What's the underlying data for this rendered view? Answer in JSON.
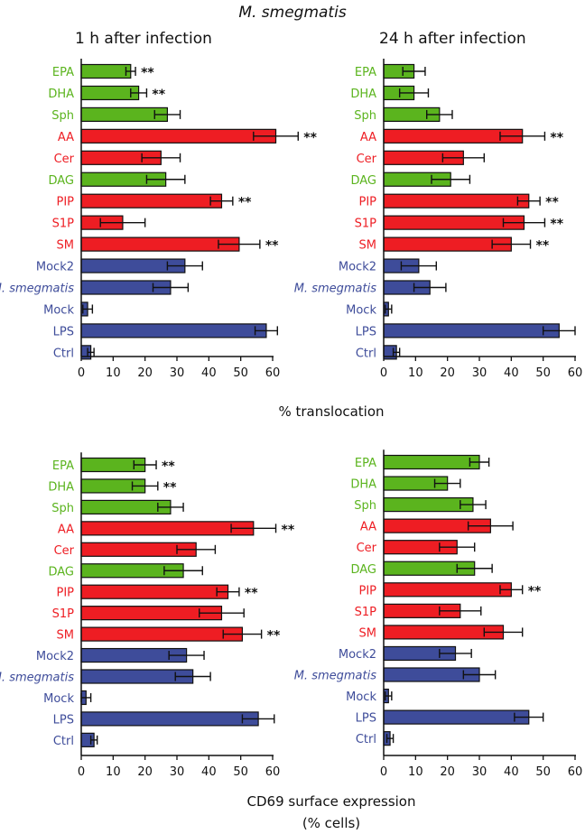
{
  "figure": {
    "title": "M. smegmatis",
    "middle_axis_label": "% translocation",
    "bottom_axis_label_line1": "CD69 surface expression",
    "bottom_axis_label_line2": "(% cells)"
  },
  "colors": {
    "green": "#5bb41e",
    "red": "#ee1d23",
    "blue": "#3e4c9a",
    "axis": "#111111"
  },
  "chart_data": [
    {
      "type": "bar",
      "orientation": "horizontal",
      "title": "1 h after infection",
      "categories": [
        "EPA",
        "DHA",
        "Sph",
        "AA",
        "Cer",
        "DAG",
        "PIP",
        "S1P",
        "SM",
        "Mock2",
        "M. smegmatis",
        "Mock",
        "LPS",
        "Ctrl"
      ],
      "category_colors": [
        "green",
        "green",
        "green",
        "red",
        "red",
        "green",
        "red",
        "red",
        "red",
        "blue",
        "blue",
        "blue",
        "blue",
        "blue"
      ],
      "values": [
        15.5,
        18,
        27,
        61,
        25,
        26.5,
        44,
        13,
        49.5,
        32.5,
        28,
        2,
        58,
        3
      ],
      "errors": [
        1.5,
        2.5,
        4,
        7,
        6,
        6,
        3.5,
        7,
        6.5,
        5.5,
        5.5,
        1.5,
        3.5,
        1
      ],
      "significance": [
        "**",
        "**",
        "",
        "**",
        "",
        "",
        "**",
        "",
        "**",
        "",
        "",
        "",
        "",
        ""
      ],
      "xlim": [
        0,
        60
      ],
      "xticks": [
        0,
        10,
        20,
        30,
        40,
        50,
        60
      ]
    },
    {
      "type": "bar",
      "orientation": "horizontal",
      "title": "24 h after infection",
      "categories": [
        "EPA",
        "DHA",
        "Sph",
        "AA",
        "Cer",
        "DAG",
        "PIP",
        "S1P",
        "SM",
        "Mock2",
        "M. smegmatis",
        "Mock",
        "LPS",
        "Ctrl"
      ],
      "category_colors": [
        "green",
        "green",
        "green",
        "red",
        "red",
        "green",
        "red",
        "red",
        "red",
        "blue",
        "blue",
        "blue",
        "blue",
        "blue"
      ],
      "values": [
        9.5,
        9.5,
        17.5,
        43.5,
        25,
        21,
        45.5,
        44,
        40,
        11,
        14.5,
        1.5,
        55,
        4
      ],
      "errors": [
        3.5,
        4.5,
        4,
        7,
        6.5,
        6,
        3.5,
        6.5,
        6,
        5.5,
        5,
        1,
        5,
        1
      ],
      "significance": [
        "",
        "",
        "",
        "**",
        "",
        "",
        "**",
        "**",
        "**",
        "",
        "",
        "",
        "",
        ""
      ],
      "xlim": [
        0,
        60
      ],
      "xticks": [
        0,
        10,
        20,
        30,
        40,
        50,
        60
      ]
    },
    {
      "type": "bar",
      "orientation": "horizontal",
      "title": "",
      "categories": [
        "EPA",
        "DHA",
        "Sph",
        "AA",
        "Cer",
        "DAG",
        "PIP",
        "S1P",
        "SM",
        "Mock2",
        "M. smegmatis",
        "Mock",
        "LPS",
        "Ctrl"
      ],
      "category_colors": [
        "green",
        "green",
        "green",
        "red",
        "red",
        "green",
        "red",
        "red",
        "red",
        "blue",
        "blue",
        "blue",
        "blue",
        "blue"
      ],
      "values": [
        20,
        20,
        28,
        54,
        36,
        32,
        46,
        44,
        50.5,
        33,
        35,
        1.5,
        55.5,
        4
      ],
      "errors": [
        3.5,
        4,
        4,
        7,
        6,
        6,
        3.5,
        7,
        6,
        5.5,
        5.5,
        1.5,
        5,
        1
      ],
      "significance": [
        "**",
        "**",
        "",
        "**",
        "",
        "",
        "**",
        "",
        "**",
        "",
        "",
        "",
        "",
        ""
      ],
      "xlim": [
        0,
        60
      ],
      "xticks": [
        0,
        10,
        20,
        30,
        40,
        50,
        60
      ]
    },
    {
      "type": "bar",
      "orientation": "horizontal",
      "title": "",
      "categories": [
        "EPA",
        "DHA",
        "Sph",
        "AA",
        "Cer",
        "DAG",
        "PIP",
        "S1P",
        "SM",
        "Mock2",
        "M. smegmatis",
        "Mock",
        "LPS",
        "Ctrl"
      ],
      "category_colors": [
        "green",
        "green",
        "green",
        "red",
        "red",
        "green",
        "red",
        "red",
        "red",
        "blue",
        "blue",
        "blue",
        "blue",
        "blue"
      ],
      "values": [
        30,
        20,
        28,
        33.5,
        23,
        28.5,
        40,
        24,
        37.5,
        22.5,
        30,
        1.5,
        45.5,
        2
      ],
      "errors": [
        3,
        4,
        4,
        7,
        5.5,
        5.5,
        3.5,
        6.5,
        6,
        5,
        5,
        1,
        4.5,
        1
      ],
      "significance": [
        "",
        "",
        "",
        "",
        "",
        "",
        "**",
        "",
        "",
        "",
        "",
        "",
        "",
        ""
      ],
      "xlim": [
        0,
        60
      ],
      "xticks": [
        0,
        10,
        20,
        30,
        40,
        50,
        60
      ]
    }
  ]
}
